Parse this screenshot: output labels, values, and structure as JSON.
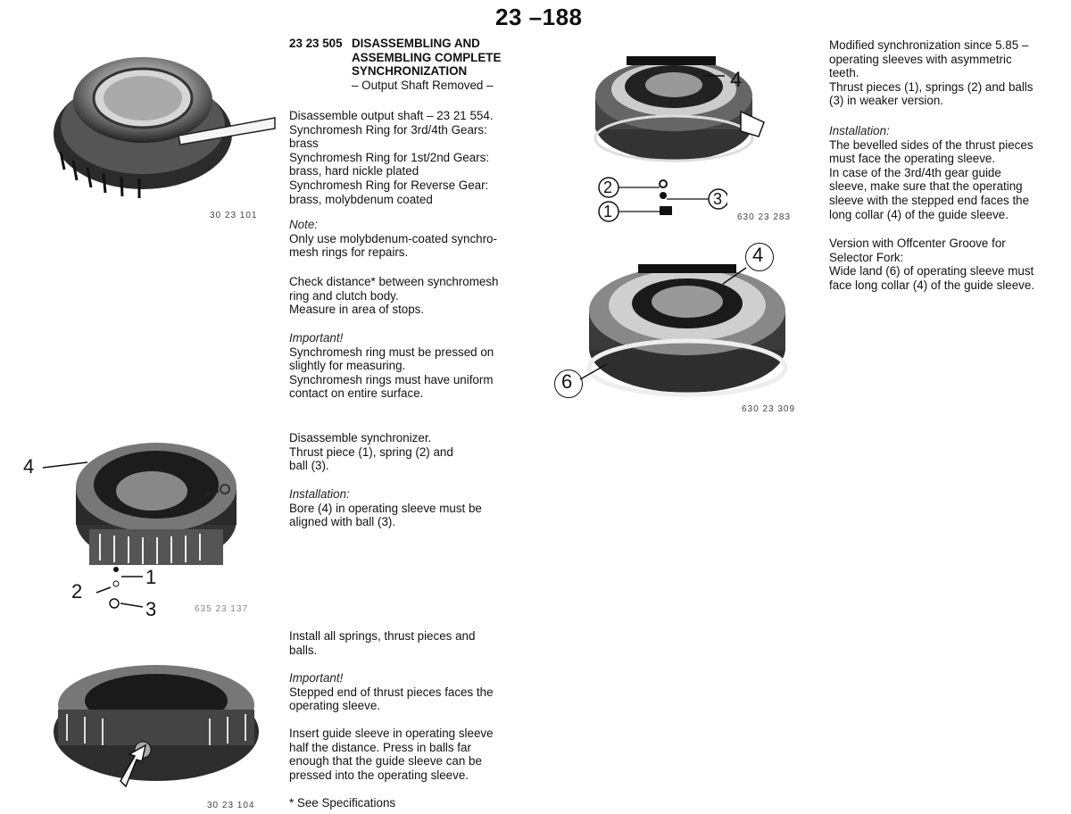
{
  "page_number": "23 –188",
  "section": {
    "code": "23 23 505",
    "title_lines": [
      "DISASSEMBLING AND",
      "ASSEMBLING COMPLETE",
      "SYNCHRONIZATION",
      "– Output Shaft Removed –"
    ]
  },
  "col2_block1": [
    "Disassemble output shaft – 23 21 554.",
    "Synchromesh Ring for 3rd/4th Gears:",
    "brass",
    "Synchromesh Ring for 1st/2nd Gears:",
    "brass, hard nickle plated",
    "Synchromesh Ring for Reverse Gear:",
    "brass, molybdenum coated"
  ],
  "col2_note": {
    "label": "Note:",
    "lines": [
      "Only use molybdenum-coated synchro-",
      "mesh rings for repairs."
    ]
  },
  "col2_check": [
    "Check distance* between synchromesh",
    "ring and clutch body.",
    "Measure in area of stops."
  ],
  "col2_important1": {
    "label": "Important!",
    "lines": [
      "Synchromesh ring must be pressed on",
      "slightly for measuring.",
      "Synchromesh rings must have uniform",
      "contact on entire surface."
    ]
  },
  "col2_disassemble": [
    "Disassemble synchronizer.",
    "Thrust piece (1), spring (2) and",
    "ball (3)."
  ],
  "col2_installation": {
    "label": "Installation:",
    "lines": [
      "Bore (4) in operating sleeve must be",
      "aligned with ball (3)."
    ]
  },
  "col2_install_all": [
    "Install all springs, thrust pieces and",
    "balls."
  ],
  "col2_important2": {
    "label": "Important!",
    "lines": [
      "Stepped end of thrust pieces faces the",
      "operating sleeve."
    ]
  },
  "col2_insert": [
    "Insert guide sleeve in operating sleeve",
    "half the distance. Press in balls far",
    "enough that the guide sleeve can be",
    "pressed into the operating sleeve."
  ],
  "col2_footnote": "* See Specifications",
  "col4_block1": [
    "Modified synchronization since 5.85 –",
    "operating sleeves with asymmetric",
    "teeth.",
    "Thrust pieces (1), springs (2) and balls",
    "(3) in weaker version."
  ],
  "col4_installation": {
    "label": "Installation:",
    "lines": [
      "The bevelled sides of the thrust pieces",
      "must face the operating sleeve.",
      "In case of the 3rd/4th gear guide",
      "sleeve, make sure that the operating",
      "sleeve with the stepped end faces the",
      "long collar (4) of the guide sleeve."
    ]
  },
  "col4_version": [
    "Version with Offcenter Groove for",
    "Selector Fork:",
    "Wide land (6) of operating sleeve must",
    "face long collar (4) of the guide sleeve."
  ],
  "figures": {
    "fig1_code": "30 23 101",
    "fig2_code": "635 23 137",
    "fig3_code": "30 23 104",
    "fig4_code": "630 23 283",
    "fig5_code": "630 23 309",
    "fig2_labels": [
      "4",
      "1",
      "2",
      "3"
    ],
    "fig4_labels": [
      "4",
      "2",
      "3",
      "1"
    ],
    "fig5_labels": [
      "4",
      "6"
    ]
  }
}
